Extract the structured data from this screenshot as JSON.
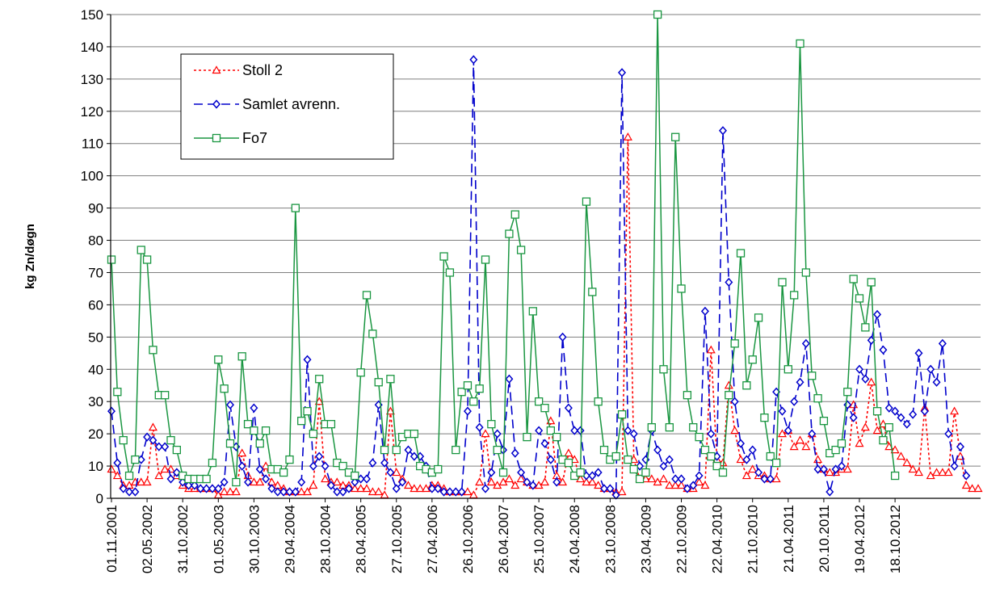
{
  "chart_data": {
    "type": "line",
    "ylabel": "kg Zn/døgn",
    "ylim": [
      0,
      150
    ],
    "yticks": [
      0,
      10,
      20,
      30,
      40,
      50,
      60,
      70,
      80,
      90,
      100,
      110,
      120,
      130,
      140,
      150
    ],
    "grid": true,
    "legend_position": "top-left",
    "x_labels": [
      "01.11.2001",
      "02.05.2002",
      "31.10.2002",
      "01.05.2003",
      "30.10.2003",
      "29.04.2004",
      "28.10.2004",
      "28.04.2005",
      "27.10.2005",
      "27.04.2006",
      "26.10.2006",
      "26.04.2007",
      "25.10.2007",
      "24.04.2008",
      "23.10.2008",
      "23.04.2009",
      "22.10.2009",
      "22.04.2010",
      "21.10.2010",
      "21.04.2011",
      "20.10.2011",
      "19.04.2012",
      "18.10.2012"
    ],
    "series": [
      {
        "name": "Stoll 2",
        "color": "#ff0000",
        "marker": "triangle",
        "line": "dotted",
        "values": [
          9,
          7,
          4,
          4,
          5,
          5,
          5,
          22,
          7,
          9,
          9,
          7,
          4,
          3,
          3,
          3,
          3,
          3,
          1,
          2,
          2,
          2,
          14,
          7,
          5,
          5,
          10,
          5,
          4,
          3,
          2,
          2,
          2,
          2,
          4,
          30,
          6,
          5,
          5,
          4,
          4,
          3,
          3,
          3,
          2,
          2,
          1,
          27,
          8,
          6,
          4,
          3,
          3,
          3,
          4,
          4,
          3,
          2,
          2,
          2,
          2,
          1,
          5,
          20,
          5,
          4,
          5,
          6,
          4,
          6,
          5,
          4,
          4,
          5,
          24,
          7,
          5,
          14,
          12,
          6,
          5,
          5,
          4,
          3,
          3,
          2,
          2,
          112,
          12,
          6,
          6,
          6,
          5,
          6,
          4,
          4,
          4,
          3,
          3,
          5,
          4,
          46,
          12,
          11,
          35,
          21,
          12,
          7,
          9,
          7,
          7,
          6,
          6,
          20,
          21,
          16,
          18,
          16,
          20,
          12,
          9,
          8,
          8,
          9,
          9,
          29,
          17,
          22,
          36,
          21,
          23,
          16,
          15,
          13,
          11,
          9,
          8,
          28,
          7,
          8,
          8,
          8,
          27,
          13,
          4,
          3,
          3
        ]
      },
      {
        "name": "Samlet avrenn.",
        "color": "#0000cc",
        "marker": "diamond",
        "line": "dashed",
        "values": [
          27,
          11,
          3,
          2,
          2,
          12,
          19,
          18,
          16,
          16,
          6,
          8,
          5,
          4,
          4,
          3,
          3,
          3,
          3,
          5,
          29,
          16,
          10,
          5,
          28,
          9,
          6,
          3,
          2,
          2,
          2,
          2,
          5,
          43,
          10,
          13,
          10,
          4,
          2,
          2,
          3,
          5,
          6,
          6,
          11,
          29,
          11,
          8,
          3,
          5,
          15,
          13,
          13,
          10,
          3,
          3,
          2,
          2,
          2,
          2,
          27,
          136,
          22,
          3,
          8,
          20,
          15,
          37,
          14,
          8,
          5,
          4,
          21,
          17,
          12,
          5,
          50,
          28,
          21,
          21,
          7,
          7,
          8,
          3,
          3,
          1,
          132,
          21,
          20,
          10,
          12,
          21,
          15,
          10,
          12,
          6,
          6,
          3,
          4,
          7,
          58,
          20,
          13,
          114,
          67,
          30,
          17,
          12,
          15,
          8,
          6,
          6,
          33,
          27,
          21,
          30,
          36,
          48,
          20,
          9,
          9,
          2,
          9,
          10,
          29,
          25,
          40,
          37,
          49,
          57,
          46,
          28,
          27,
          25,
          23,
          26,
          45,
          27,
          40,
          36,
          48,
          20,
          10,
          16,
          7
        ]
      },
      {
        "name": "Fo7",
        "color": "#1a9641",
        "marker": "square",
        "line": "solid",
        "values": [
          74,
          33,
          18,
          7,
          12,
          77,
          74,
          46,
          32,
          32,
          18,
          15,
          7,
          6,
          6,
          6,
          6,
          11,
          43,
          34,
          17,
          5,
          44,
          23,
          21,
          17,
          21,
          9,
          9,
          8,
          12,
          90,
          24,
          27,
          20,
          37,
          23,
          23,
          11,
          10,
          8,
          7,
          39,
          63,
          51,
          36,
          15,
          37,
          15,
          19,
          20,
          20,
          10,
          9,
          8,
          9,
          75,
          70,
          15,
          33,
          35,
          30,
          34,
          74,
          23,
          15,
          8,
          82,
          88,
          77,
          19,
          58,
          30,
          28,
          21,
          19,
          12,
          11,
          7,
          8,
          92,
          64,
          30,
          15,
          12,
          13,
          26,
          12,
          9,
          6,
          8,
          22,
          150,
          40,
          22,
          112,
          65,
          32,
          22,
          19,
          15,
          13,
          10,
          8,
          32,
          48,
          76,
          35,
          43,
          56,
          25,
          13,
          11,
          67,
          40,
          63,
          141,
          70,
          38,
          31,
          24,
          14,
          15,
          17,
          33,
          68,
          62,
          53,
          67,
          27,
          18,
          22,
          7
        ]
      }
    ]
  }
}
